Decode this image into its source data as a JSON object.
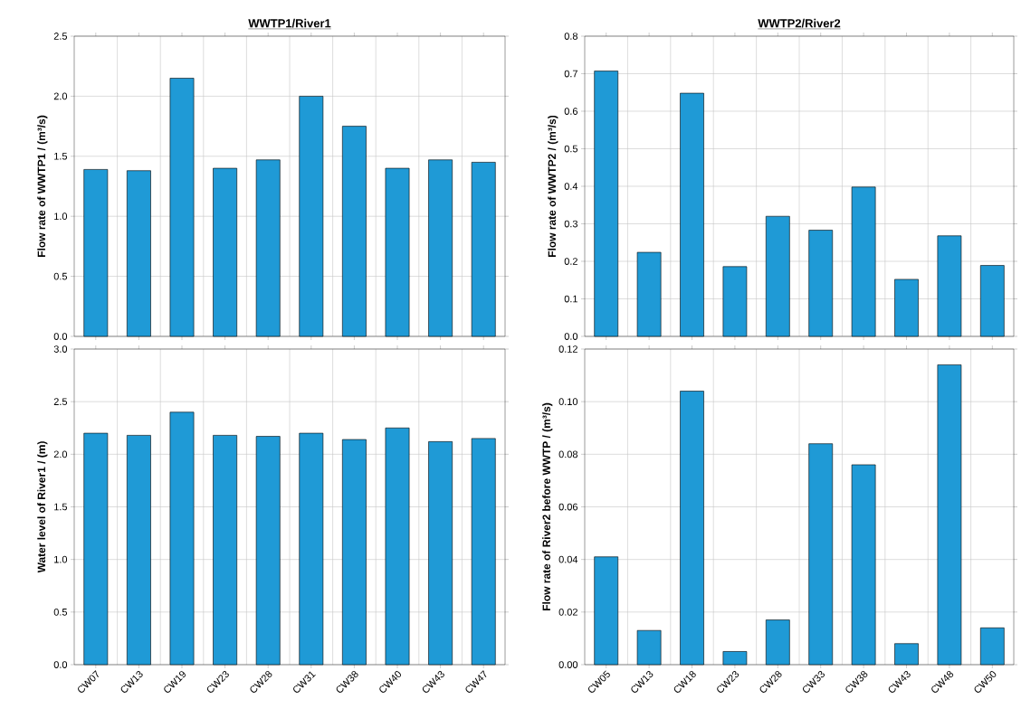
{
  "chart_data": [
    {
      "type": "bar",
      "title": "WWTP1/River1",
      "ylabel": "Flow rate of WWTP1 / (m³/s)",
      "categories": [
        null,
        null,
        null,
        null,
        null,
        null,
        null,
        null,
        null,
        null
      ],
      "values": [
        1.39,
        1.38,
        2.15,
        1.4,
        1.47,
        2.0,
        1.75,
        1.4,
        1.47,
        1.45
      ],
      "color": "#1f9ad6",
      "ylim": [
        0,
        2.5
      ],
      "yticks": [
        {
          "value": 0,
          "label": "0.0"
        },
        0.5,
        {
          "value": 1,
          "label": "1.0"
        },
        1.5,
        {
          "value": 2,
          "label": "2.0"
        },
        2.5
      ],
      "grid": true
    },
    {
      "type": "bar",
      "title": "WWTP2/River2",
      "ylabel": "Flow rate of WWTP2 / (m³/s)",
      "categories": [
        null,
        null,
        null,
        null,
        null,
        null,
        null,
        null,
        null,
        null
      ],
      "values": [
        0.707,
        0.224,
        0.648,
        0.186,
        0.32,
        0.283,
        0.398,
        0.152,
        0.268,
        0.189
      ],
      "color": "#1f9ad6",
      "ylim": [
        0,
        0.8
      ],
      "yticks": [
        {
          "value": 0,
          "label": "0.0"
        },
        0.1,
        0.2,
        0.3,
        0.4,
        0.5,
        0.6,
        0.7,
        0.8
      ],
      "grid": true
    },
    {
      "type": "bar",
      "ylabel": "Water level of River1 / (m)",
      "categories": [
        "CW07",
        "CW13",
        "CW19",
        "CW23",
        "CW28",
        "CW31",
        "CW38",
        "CW40",
        "CW43",
        "CW47"
      ],
      "values": [
        2.2,
        2.18,
        2.4,
        2.18,
        2.17,
        2.2,
        2.14,
        2.25,
        2.12,
        2.15
      ],
      "color": "#1f9ad6",
      "ylim": [
        0,
        3
      ],
      "yticks": [
        {
          "value": 0,
          "label": "0.0"
        },
        0.5,
        {
          "value": 1,
          "label": "1.0"
        },
        1.5,
        {
          "value": 2,
          "label": "2.0"
        },
        2.5,
        {
          "value": 3,
          "label": "3.0"
        }
      ],
      "grid": true
    },
    {
      "type": "bar",
      "ylabel": "Flow rate of River2 before WWTP / (m³/s)",
      "categories": [
        "CW05",
        "CW13",
        "CW18",
        "CW23",
        "CW28",
        "CW33",
        "CW38",
        "CW43",
        "CW48",
        "CW50"
      ],
      "values": [
        0.041,
        0.013,
        0.104,
        0.005,
        0.017,
        0.084,
        0.076,
        0.008,
        0.114,
        0.014
      ],
      "color": "#1f9ad6",
      "ylim": [
        0,
        0.12
      ],
      "yticks": [
        {
          "value": 0,
          "label": "0.00"
        },
        0.02,
        0.04,
        0.06,
        0.08,
        {
          "value": 0.1,
          "label": "0.10"
        },
        0.12
      ],
      "grid": true
    }
  ]
}
